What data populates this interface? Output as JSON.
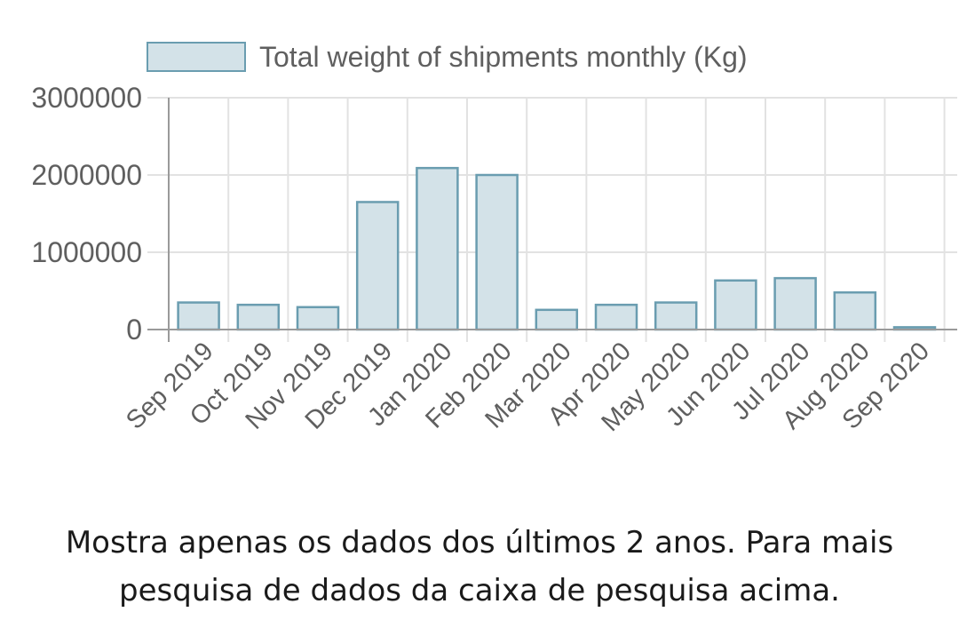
{
  "chart_data": {
    "type": "bar",
    "categories": [
      "Sep 2019",
      "Oct 2019",
      "Nov 2019",
      "Dec 2019",
      "Jan 2020",
      "Feb 2020",
      "Mar 2020",
      "Apr 2020",
      "May 2020",
      "Jun 2020",
      "Jul 2020",
      "Aug 2020",
      "Sep 2020"
    ],
    "series": [
      {
        "name": "Total weight of shipments monthly (Kg)",
        "values": [
          350000,
          320000,
          290000,
          1650000,
          2090000,
          2000000,
          255000,
          320000,
          350000,
          635000,
          665000,
          480000,
          30000
        ]
      }
    ],
    "yticks": [
      "0",
      "1000000",
      "2000000",
      "3000000"
    ],
    "ylim": [
      0,
      3000000
    ],
    "grid": true,
    "legend": "top",
    "colors": {
      "bar_fill": "#d3e2e8",
      "bar_stroke": "#6a9db0",
      "grid": "#e2e2e2",
      "axis": "#9a9a9a",
      "text": "#5f5f5f"
    }
  },
  "caption": {
    "line1": "Mostra apenas os dados dos últimos 2 anos. Para mais",
    "line2": "pesquisa de dados da caixa de pesquisa acima."
  }
}
